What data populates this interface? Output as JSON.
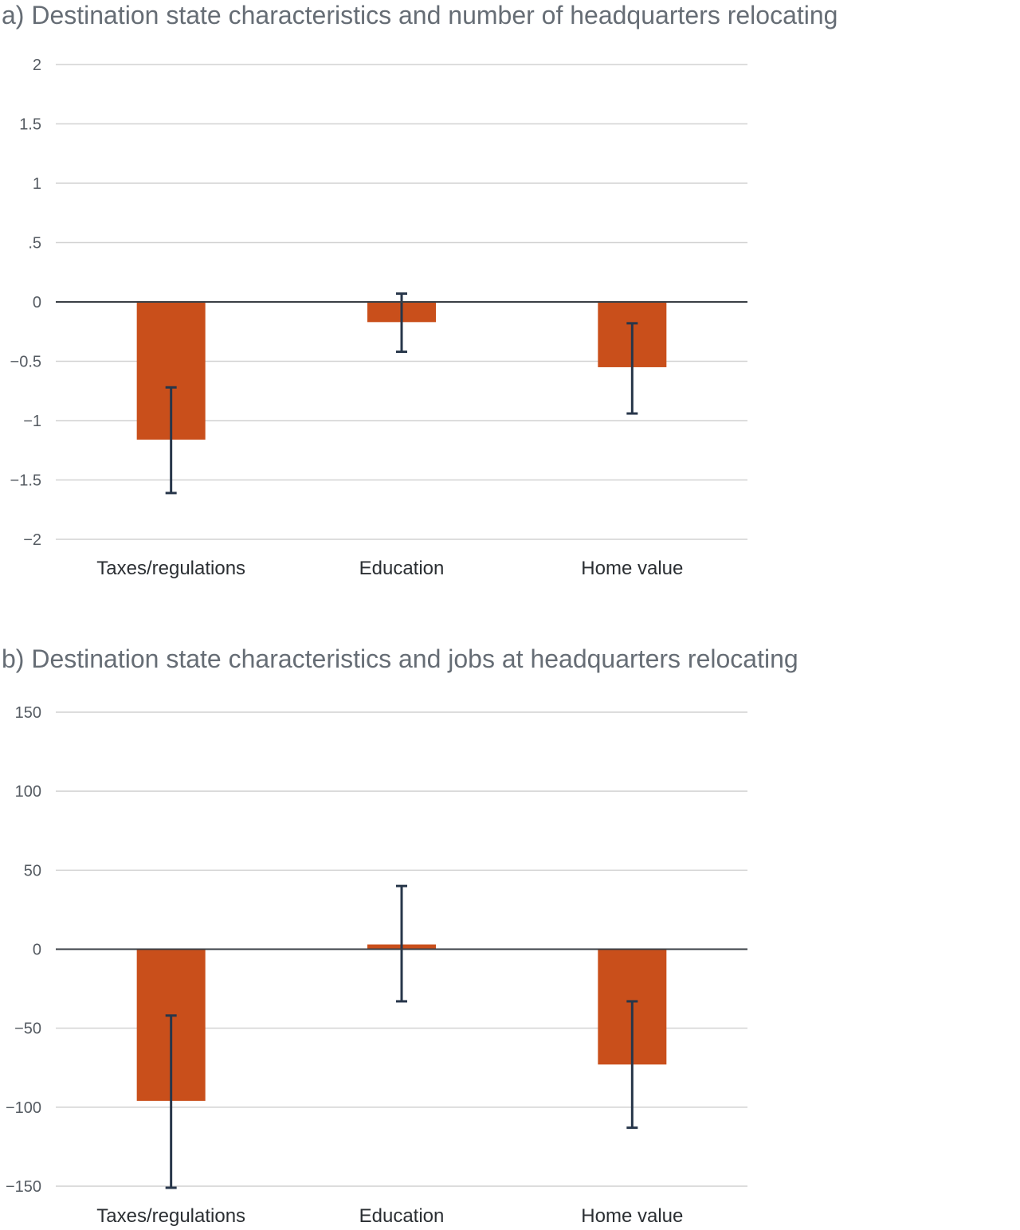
{
  "chart_data": [
    {
      "type": "bar",
      "title": "a) Destination state characteristics and number of headquarters relocating",
      "categories": [
        "Taxes/regulations",
        "Education",
        "Home value"
      ],
      "values": [
        -1.16,
        -0.17,
        -0.55
      ],
      "error_low": [
        -1.61,
        -0.42,
        -0.94
      ],
      "error_high": [
        -0.72,
        0.07,
        -0.18
      ],
      "ylim": [
        -2,
        2
      ],
      "yticks": [
        2,
        1.5,
        1,
        0.5,
        0,
        -0.5,
        -1,
        -1.5,
        -2
      ],
      "ytick_labels": [
        "2",
        "1.5",
        "1",
        ".5",
        "0",
        "−0.5",
        "−1",
        "−1.5",
        "−2"
      ],
      "xlabel": "",
      "ylabel": "",
      "grid": true,
      "colors": {
        "bar": "#c94f1b",
        "error": "#27364a",
        "grid": "#d2d2d2",
        "zero": "#3a3f45"
      }
    },
    {
      "type": "bar",
      "title": "b) Destination state characteristics and jobs at headquarters relocating",
      "categories": [
        "Taxes/regulations",
        "Education",
        "Home value"
      ],
      "values": [
        -96,
        3,
        -73
      ],
      "error_low": [
        -151,
        -33,
        -113
      ],
      "error_high": [
        -42,
        40,
        -33
      ],
      "ylim": [
        -150,
        150
      ],
      "yticks": [
        150,
        100,
        50,
        0,
        -50,
        -100,
        -150
      ],
      "ytick_labels": [
        "150",
        "100",
        "50",
        "0",
        "−50",
        "−100",
        "−150"
      ],
      "xlabel": "",
      "ylabel": "",
      "grid": true,
      "colors": {
        "bar": "#c94f1b",
        "error": "#27364a",
        "grid": "#d2d2d2",
        "zero": "#3a3f45"
      }
    }
  ]
}
